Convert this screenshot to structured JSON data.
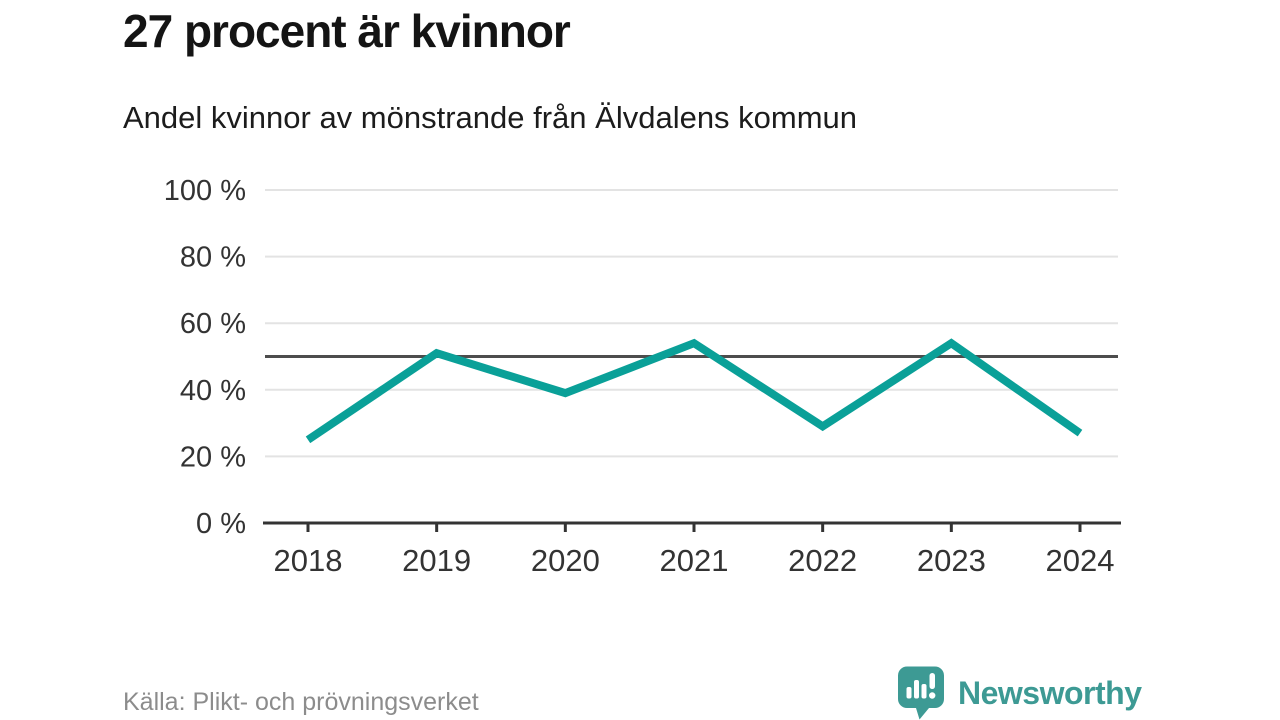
{
  "header": {
    "title": "27 procent är kvinnor",
    "subtitle": "Andel kvinnor av mönstrande från Älvdalens kommun"
  },
  "footer": {
    "source": "Källa: Plikt- och prövningsverket",
    "brand": "Newsworthy",
    "brand_icon": "newsworthy-speech-bubble-bar-chart-icon"
  },
  "colors": {
    "line": "#0aa098",
    "reference_line": "#4d4d4d",
    "grid": "#e3e3e3",
    "axis": "#333333",
    "tick_label": "#333333",
    "title": "#141414",
    "source": "#8c8c8c",
    "brand": "#3d9a94"
  },
  "chart_data": {
    "type": "line",
    "title": "27 procent är kvinnor",
    "subtitle": "Andel kvinnor av mönstrande från Älvdalens kommun",
    "x": [
      2018,
      2019,
      2020,
      2021,
      2022,
      2023,
      2024
    ],
    "series": [
      {
        "name": "Andel kvinnor av mönstrande",
        "values": [
          25,
          51,
          39,
          54,
          29,
          54,
          27
        ]
      }
    ],
    "xlabel": "",
    "ylabel": "",
    "ylim": [
      0,
      100
    ],
    "yticks": [
      0,
      20,
      40,
      60,
      80,
      100
    ],
    "ytick_suffix": " %",
    "reference_line_y": 50,
    "grid": "horizontal",
    "legend": "none"
  }
}
